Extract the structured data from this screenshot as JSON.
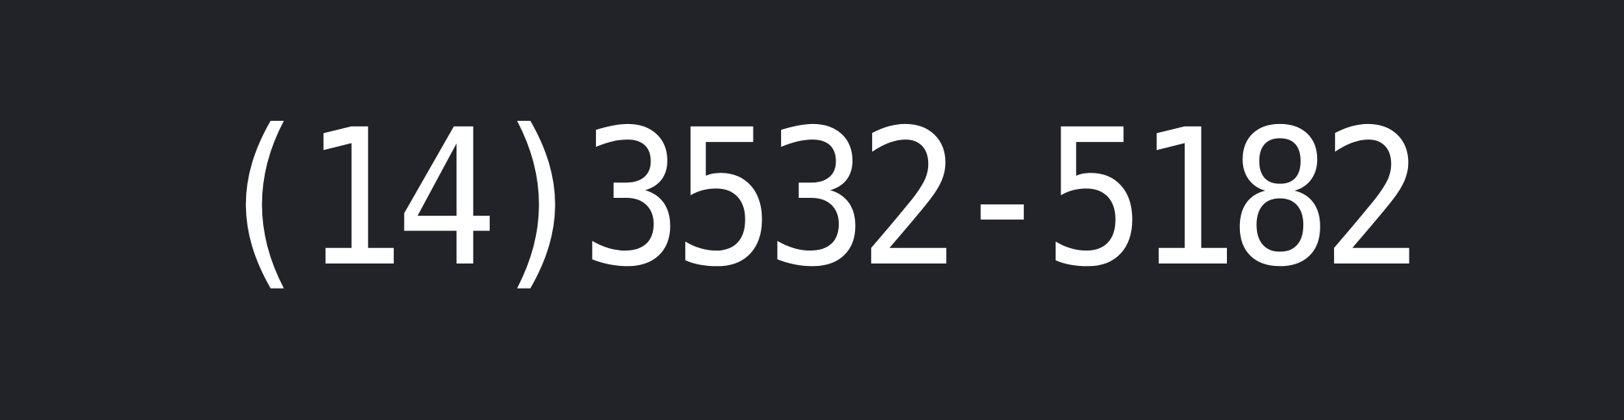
{
  "display": {
    "phone_number": "(14)3532-5182",
    "text_color": "#ffffff",
    "background_color": "#212328"
  }
}
